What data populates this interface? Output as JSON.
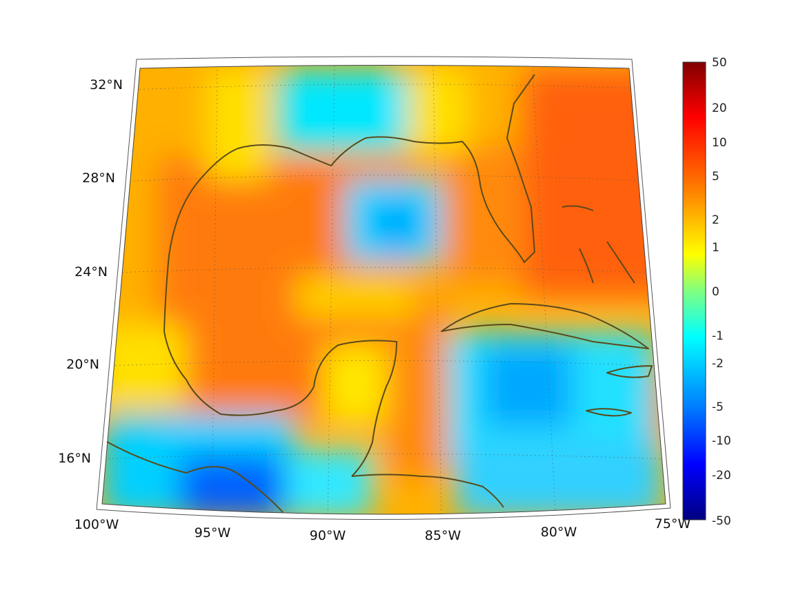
{
  "map": {
    "lon_labels": [
      "100°W",
      "95°W",
      "90°W",
      "85°W",
      "80°W",
      "75°W"
    ],
    "lat_labels": [
      "32°N",
      "28°N",
      "24°N",
      "20°N",
      "16°N"
    ],
    "extent": {
      "lon_min": -100,
      "lon_max": -75,
      "lat_min": 14,
      "lat_max": 33
    },
    "projection": "conic",
    "grid": "dotted",
    "coastline_color": "#5a4a1a",
    "field_description": "anomaly field, Gulf of Mexico and western Caribbean"
  },
  "colorbar": {
    "ticks": [
      "50",
      "20",
      "10",
      "5",
      "2",
      "1",
      "0",
      "-1",
      "-2",
      "-5",
      "-10",
      "-20",
      "-50"
    ],
    "colormap": "jet",
    "colors": [
      "#800000",
      "#ff0000",
      "#ff8000",
      "#ffff00",
      "#80ff80",
      "#00ffff",
      "#0080ff",
      "#0000ff",
      "#000080"
    ]
  }
}
